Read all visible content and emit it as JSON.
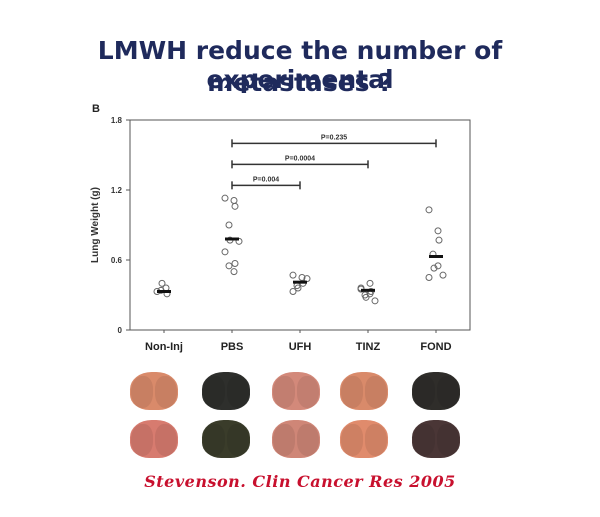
{
  "slide": {
    "title_line1": "LMWH reduce the number of experimental",
    "title_line2": "metastases ?",
    "citation": "Stevenson. Clin Cancer Res 2005"
  },
  "chart_data": {
    "type": "scatter",
    "panel_label": "B",
    "title": "",
    "xlabel": "",
    "ylabel": "Lung Weight (g)",
    "ylim": [
      0,
      1.8
    ],
    "yticks": [
      "0",
      "0.6",
      "1.2",
      "1.8"
    ],
    "ytick_values": [
      0,
      0.6,
      1.2,
      1.8
    ],
    "grid": false,
    "categories": [
      "Non-Inj",
      "PBS",
      "UFH",
      "TINZ",
      "FOND"
    ],
    "points": [
      [
        0.33,
        0.36,
        0.31,
        0.34,
        0.4
      ],
      [
        1.13,
        1.11,
        1.06,
        0.9,
        0.77,
        0.76,
        0.67,
        0.5,
        0.57,
        0.55
      ],
      [
        0.47,
        0.45,
        0.4,
        0.38,
        0.36,
        0.44,
        0.33
      ],
      [
        0.36,
        0.4,
        0.33,
        0.3,
        0.28,
        0.25,
        0.35,
        0.31
      ],
      [
        1.03,
        0.85,
        0.77,
        0.65,
        0.53,
        0.47,
        0.45,
        0.55
      ]
    ],
    "means": [
      0.33,
      0.78,
      0.41,
      0.34,
      0.63
    ],
    "comparisons": [
      {
        "from": "PBS",
        "to": "UFH",
        "label": "P=0.004"
      },
      {
        "from": "PBS",
        "to": "TINZ",
        "label": "P=0.0004"
      },
      {
        "from": "PBS",
        "to": "FOND",
        "label": "P=0.235"
      }
    ]
  },
  "photos": {
    "rows": [
      [
        "#d98a6a",
        "#2e2f2c",
        "#d3897a",
        "#d98a6a",
        "#2f2d2a"
      ],
      [
        "#d77b6f",
        "#3a3c2a",
        "#cf8677",
        "#e08b6c",
        "#4a3636"
      ]
    ]
  }
}
